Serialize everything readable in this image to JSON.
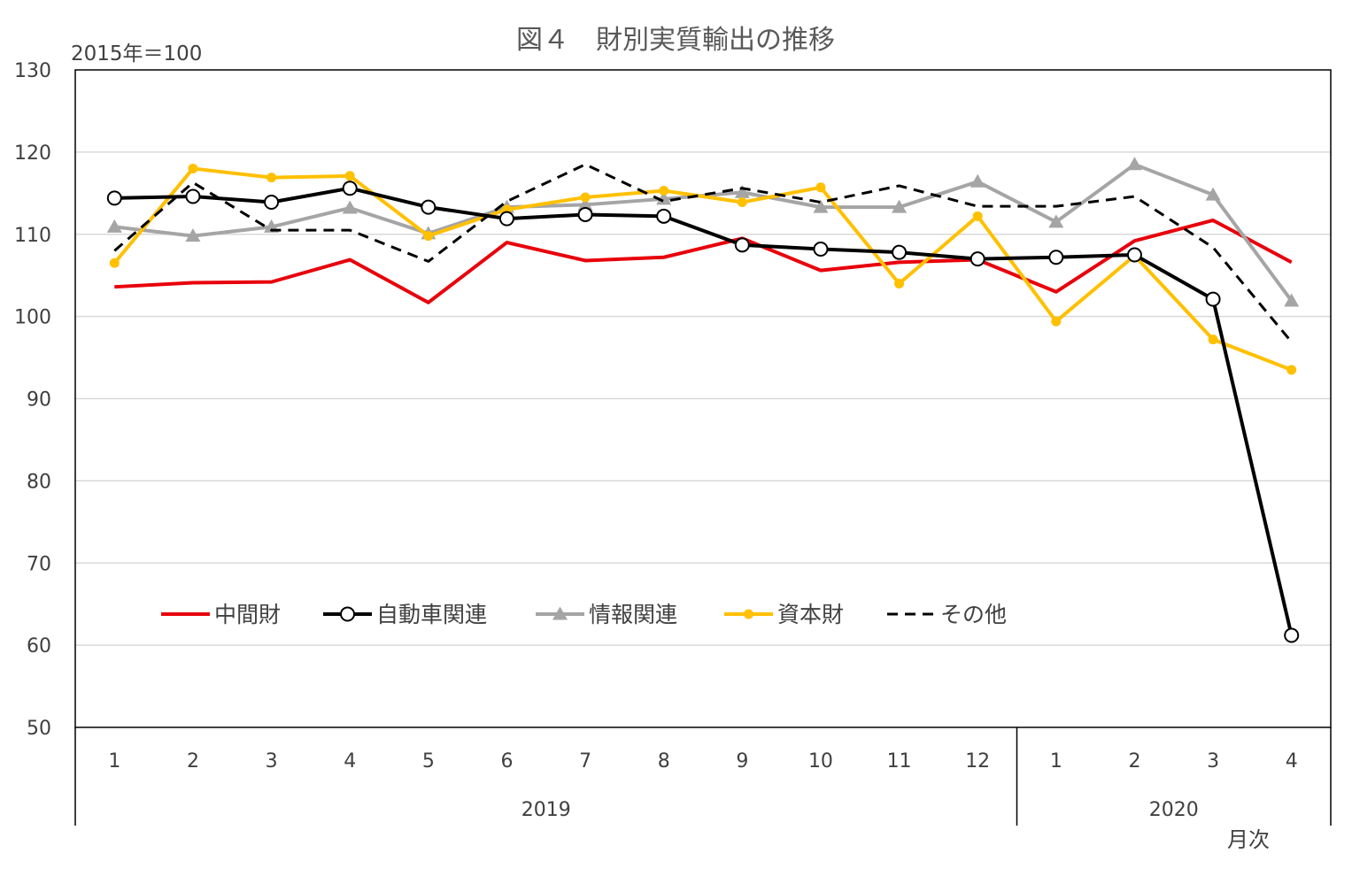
{
  "chart_data": {
    "type": "line",
    "title": "図４　財別実質輸出の推移",
    "unit_label": "2015年＝100",
    "xlabel": "月次",
    "ylim": [
      50,
      130
    ],
    "yticks": [
      50,
      60,
      70,
      80,
      90,
      100,
      110,
      120,
      130
    ],
    "grid": true,
    "legend_position": "lower-left inside",
    "categories": [
      "1",
      "2",
      "3",
      "4",
      "5",
      "6",
      "7",
      "8",
      "9",
      "10",
      "11",
      "12",
      "1",
      "2",
      "3",
      "4"
    ],
    "year_groups": [
      {
        "label": "2019",
        "count": 12
      },
      {
        "label": "2020",
        "count": 4
      }
    ],
    "series": [
      {
        "name": "中間財",
        "color": "#e8000b",
        "style": "solid",
        "marker": "none",
        "values": [
          103.6,
          104.1,
          104.2,
          106.9,
          101.7,
          109.0,
          106.8,
          107.2,
          109.5,
          105.6,
          106.6,
          106.9,
          103.0,
          109.2,
          111.7,
          106.6
        ]
      },
      {
        "name": "自動車関連",
        "color": "#000000",
        "style": "solid",
        "marker": "open-circle",
        "values": [
          114.4,
          114.6,
          113.9,
          115.6,
          113.3,
          111.9,
          112.4,
          112.2,
          108.7,
          108.2,
          107.8,
          107.0,
          107.2,
          107.5,
          102.1,
          61.2
        ]
      },
      {
        "name": "情報関連",
        "color": "#a5a5a5",
        "style": "solid",
        "marker": "triangle",
        "values": [
          110.9,
          109.8,
          110.9,
          113.2,
          110.1,
          113.3,
          113.6,
          114.3,
          115.1,
          113.3,
          113.3,
          116.4,
          111.5,
          118.5,
          114.8,
          101.9
        ]
      },
      {
        "name": "資本財",
        "color": "#ffc000",
        "style": "solid",
        "marker": "dot",
        "values": [
          106.5,
          118.0,
          116.9,
          117.1,
          109.8,
          113.0,
          114.5,
          115.3,
          113.9,
          115.7,
          104.0,
          112.2,
          99.4,
          107.4,
          97.2,
          93.5
        ]
      },
      {
        "name": "その他",
        "color": "#000000",
        "style": "dashed",
        "marker": "none",
        "values": [
          108.0,
          116.3,
          110.5,
          110.5,
          106.7,
          114.0,
          118.5,
          114.0,
          115.6,
          113.9,
          115.9,
          113.4,
          113.4,
          114.6,
          108.4,
          96.9
        ]
      }
    ]
  }
}
